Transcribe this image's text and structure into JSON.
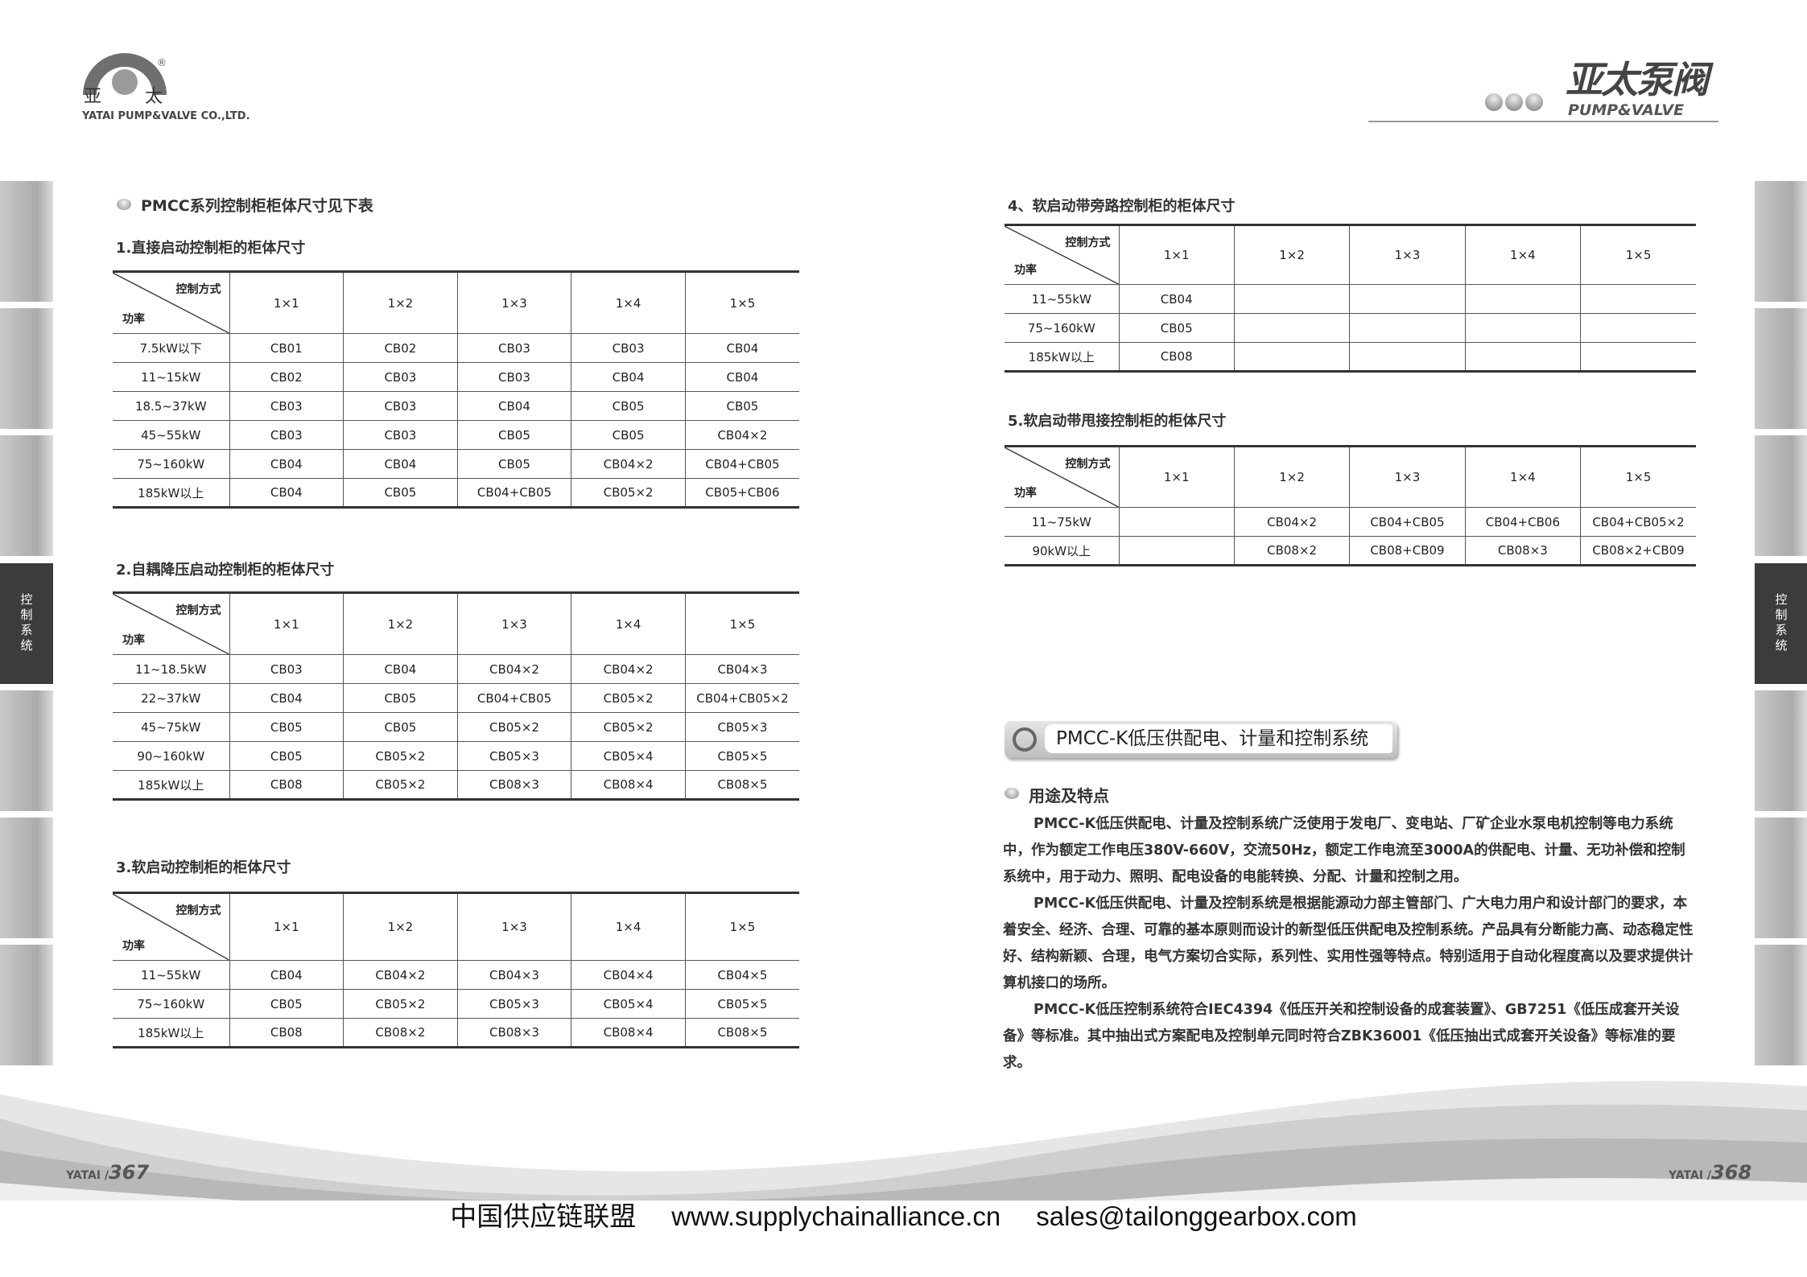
{
  "header": {
    "logo_cn_left": "亚",
    "logo_cn_right": "太",
    "logo_en": "YATAI PUMP&VALVE CO.,LTD.",
    "registered": "®",
    "right_logo_cn": "亚太泵阀",
    "right_logo_en": "PUMP&VALVE"
  },
  "side_tab": {
    "label": "控制系统"
  },
  "left": {
    "section_title": "PMCC系列控制柜柜体尺寸见下表",
    "tables": [
      {
        "title": "1.直接启动控制柜的柜体尺寸",
        "corner_top": "控制方式",
        "corner_bottom": "功率",
        "columns": [
          "1×1",
          "1×2",
          "1×3",
          "1×4",
          "1×5"
        ],
        "rows": [
          [
            "7.5kW以下",
            "CB01",
            "CB02",
            "CB03",
            "CB03",
            "CB04"
          ],
          [
            "11~15kW",
            "CB02",
            "CB03",
            "CB03",
            "CB04",
            "CB04"
          ],
          [
            "18.5~37kW",
            "CB03",
            "CB03",
            "CB04",
            "CB05",
            "CB05"
          ],
          [
            "45~55kW",
            "CB03",
            "CB03",
            "CB05",
            "CB05",
            "CB04×2"
          ],
          [
            "75~160kW",
            "CB04",
            "CB04",
            "CB05",
            "CB04×2",
            "CB04+CB05"
          ],
          [
            "185kW以上",
            "CB04",
            "CB05",
            "CB04+CB05",
            "CB05×2",
            "CB05+CB06"
          ]
        ]
      },
      {
        "title": "2.自耦降压启动控制柜的柜体尺寸",
        "corner_top": "控制方式",
        "corner_bottom": "功率",
        "columns": [
          "1×1",
          "1×2",
          "1×3",
          "1×4",
          "1×5"
        ],
        "rows": [
          [
            "11~18.5kW",
            "CB03",
            "CB04",
            "CB04×2",
            "CB04×2",
            "CB04×3"
          ],
          [
            "22~37kW",
            "CB04",
            "CB05",
            "CB04+CB05",
            "CB05×2",
            "CB04+CB05×2"
          ],
          [
            "45~75kW",
            "CB05",
            "CB05",
            "CB05×2",
            "CB05×2",
            "CB05×3"
          ],
          [
            "90~160kW",
            "CB05",
            "CB05×2",
            "CB05×3",
            "CB05×4",
            "CB05×5"
          ],
          [
            "185kW以上",
            "CB08",
            "CB05×2",
            "CB08×3",
            "CB08×4",
            "CB08×5"
          ]
        ]
      },
      {
        "title": "3.软启动控制柜的柜体尺寸",
        "corner_top": "控制方式",
        "corner_bottom": "功率",
        "columns": [
          "1×1",
          "1×2",
          "1×3",
          "1×4",
          "1×5"
        ],
        "rows": [
          [
            "11~55kW",
            "CB04",
            "CB04×2",
            "CB04×3",
            "CB04×4",
            "CB04×5"
          ],
          [
            "75~160kW",
            "CB05",
            "CB05×2",
            "CB05×3",
            "CB05×4",
            "CB05×5"
          ],
          [
            "185kW以上",
            "CB08",
            "CB08×2",
            "CB08×3",
            "CB08×4",
            "CB08×5"
          ]
        ]
      }
    ],
    "page_brand": "YATAI /",
    "page_number": "367"
  },
  "right": {
    "tables": [
      {
        "title": "4、软启动带旁路控制柜的柜体尺寸",
        "corner_top": "控制方式",
        "corner_bottom": "功率",
        "columns": [
          "1×1",
          "1×2",
          "1×3",
          "1×4",
          "1×5"
        ],
        "rows": [
          [
            "11~55kW",
            "CB04",
            "",
            "",
            "",
            ""
          ],
          [
            "75~160kW",
            "CB05",
            "",
            "",
            "",
            ""
          ],
          [
            "185kW以上",
            "CB08",
            "",
            "",
            "",
            ""
          ]
        ]
      },
      {
        "title": "5.软启动带甩接控制柜的柜体尺寸",
        "corner_top": "控制方式",
        "corner_bottom": "功率",
        "columns": [
          "1×1",
          "1×2",
          "1×3",
          "1×4",
          "1×5"
        ],
        "rows": [
          [
            "11~75kW",
            "",
            "CB04×2",
            "CB04+CB05",
            "CB04+CB06",
            "CB04+CB05×2"
          ],
          [
            "90kW以上",
            "",
            "CB08×2",
            "CB08+CB09",
            "CB08×3",
            "CB08×2+CB09"
          ]
        ]
      }
    ],
    "banner_title": "PMCC-K低压供配电、计量和控制系统",
    "subsection_title": "用途及特点",
    "paragraphs": [
      "PMCC-K低压供配电、计量及控制系统广泛使用于发电厂、变电站、厂矿企业水泵电机控制等电力系统中，作为额定工作电压380V-660V，交流50Hz，额定工作电流至3000A的供配电、计量、无功补偿和控制系统中，用于动力、照明、配电设备的电能转换、分配、计量和控制之用。",
      "PMCC-K低压供配电、计量及控制系统是根据能源动力部主管部门、广大电力用户和设计部门的要求，本着安全、经济、合理、可靠的基本原则而设计的新型低压供配电及控制系统。产品具有分断能力高、动态稳定性好、结构新颖、合理，电气方案切合实际，系列性、实用性强等特点。特别适用于自动化程度高以及要求提供计算机接口的场所。",
      "PMCC-K低压控制系统符合IEC4394《低压开关和控制设备的成套装置》、GB7251《低压成套开关设备》等标准。其中抽出式方案配电及控制单元同时符合ZBK36001《低压抽出式成套开关设备》等标准的要求。"
    ],
    "page_brand": "YATAI /",
    "page_number": "368"
  },
  "footer": {
    "org": "中国供应链联盟",
    "website": "www.supplychainalliance.cn",
    "email": "sales@tailonggearbox.com"
  }
}
